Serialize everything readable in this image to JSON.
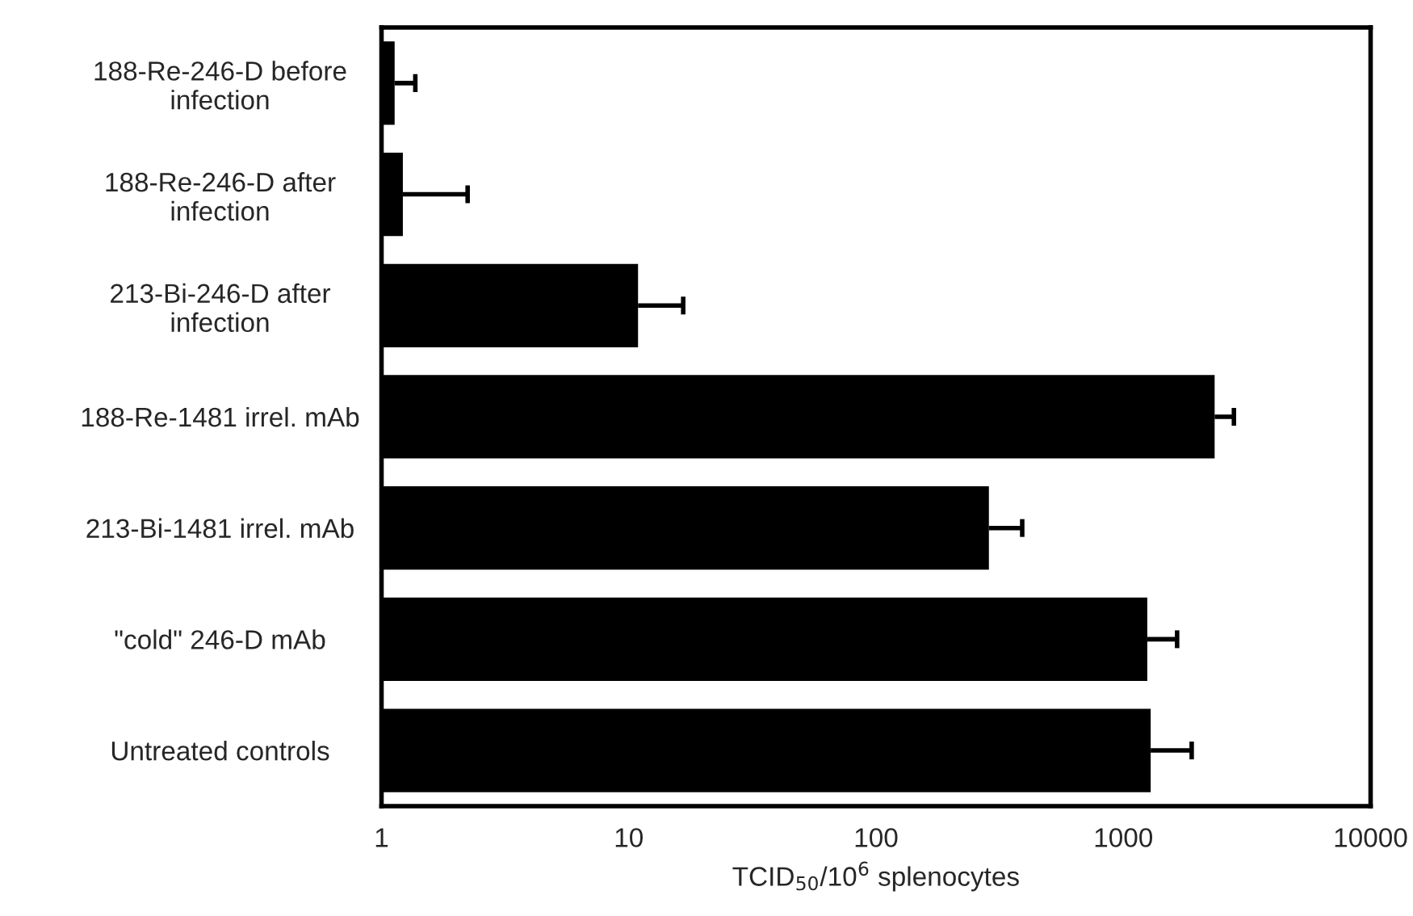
{
  "chart_data": {
    "type": "bar",
    "orientation": "horizontal",
    "log": "x",
    "xlabel": "TCID$_{50}$/10$^{6}$ splenocytes",
    "categories": [
      "188-Re-246-D before\ninfection",
      "188-Re-246-D after\ninfection",
      "213-Bi-246-D after\ninfection",
      "188-Re-1481 irrel. mAb",
      "213-Bi-1481 irrel. mAb",
      "\"cold\" 246-D mAb",
      "Untreated controls"
    ],
    "series": [
      {
        "color": "#000000",
        "values": [
          1.13,
          1.22,
          10.9,
          2340,
          286,
          1250,
          1290
        ],
        "errors": [
          [
            1.13,
            1.37
          ],
          [
            1.22,
            2.23
          ],
          [
            10.9,
            16.6
          ],
          [
            2340,
            2800
          ],
          [
            286,
            390
          ],
          [
            1250,
            1650
          ],
          [
            1290,
            1890
          ]
        ]
      }
    ],
    "xlim": [
      1,
      10000
    ],
    "xticks": [
      1,
      10,
      100,
      1000,
      10000
    ],
    "grid": false,
    "legend": false
  }
}
